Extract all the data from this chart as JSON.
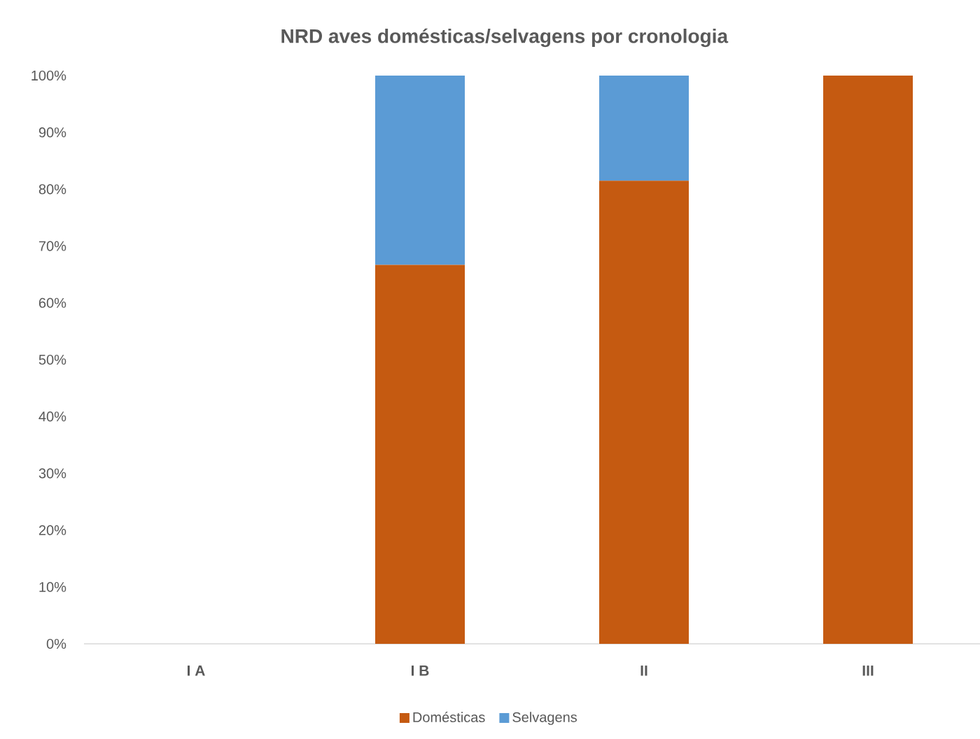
{
  "chart_data": {
    "type": "bar",
    "title": "NRD aves domésticas/selvagens por cronologia",
    "categories": [
      "I A",
      "I B",
      "II",
      "III"
    ],
    "stacked": true,
    "series": [
      {
        "name": "Domésticas",
        "color": "#c55a11",
        "values": [
          null,
          66.7,
          81.5,
          100
        ]
      },
      {
        "name": "Selvagens",
        "color": "#5b9bd5",
        "values": [
          null,
          33.3,
          18.5,
          null
        ]
      }
    ],
    "ylim": [
      0,
      100
    ],
    "yticks": [
      {
        "value": 0,
        "label": "0%"
      },
      {
        "value": 10,
        "label": "10%"
      },
      {
        "value": 20,
        "label": "20%"
      },
      {
        "value": 30,
        "label": "30%"
      },
      {
        "value": 40,
        "label": "40%"
      },
      {
        "value": 50,
        "label": "50%"
      },
      {
        "value": 60,
        "label": "60%"
      },
      {
        "value": 70,
        "label": "70%"
      },
      {
        "value": 80,
        "label": "80%"
      },
      {
        "value": 90,
        "label": "90%"
      },
      {
        "value": 100,
        "label": "100%"
      }
    ],
    "legend": "bottom"
  }
}
